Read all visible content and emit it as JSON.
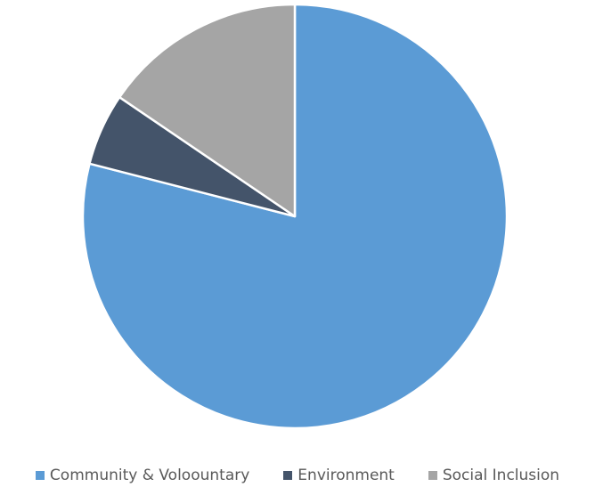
{
  "chart_data": {
    "type": "pie",
    "categories": [
      "Community & Voloountary",
      "Environment",
      "Social Inclusion"
    ],
    "values": [
      79,
      5.5,
      15.5
    ],
    "colors": [
      "#5b9bd5",
      "#44546a",
      "#a5a5a5"
    ],
    "start_angle_deg": 0,
    "direction": "clockwise",
    "legend_position": "bottom",
    "title": ""
  }
}
